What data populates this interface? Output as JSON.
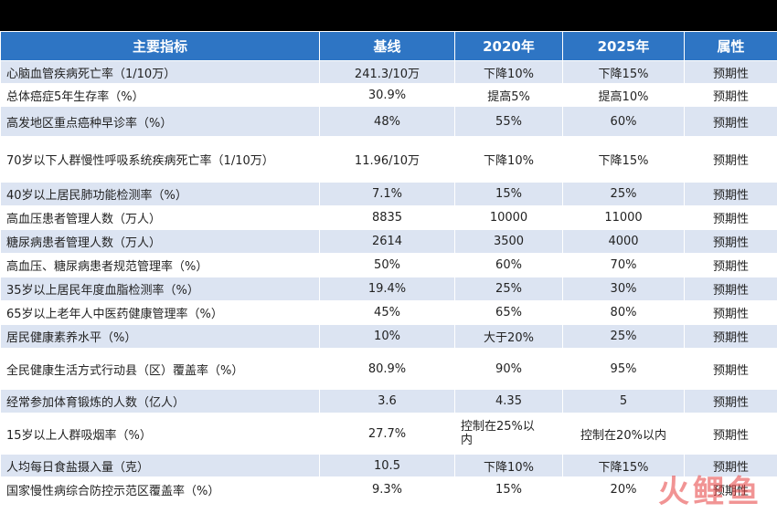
{
  "headers": [
    "主要指标",
    "基线",
    "2020年",
    "2025年",
    "属性"
  ],
  "rows": [
    [
      "心脑血管疾病死亡率（1/10万）",
      "241.3/10万",
      "下降10%",
      "下降15%",
      "预期性"
    ],
    [
      "总体癌症5年生存率（%）",
      "30.9%",
      "提高5%",
      "提高10%",
      "预期性"
    ],
    [
      "高发地区重点癌种早诊率（%）",
      "48%",
      "55%",
      "60%",
      "预期性"
    ],
    [
      "70岁以下人群慢性呼吸系统疾病死亡率（1/10万）",
      "11.96/10万",
      "下降10%",
      "下降15%",
      "预期性"
    ],
    [
      "40岁以上居民肺功能检测率（%）",
      "7.1%",
      "15%",
      "25%",
      "预期性"
    ],
    [
      "高血压患者管理人数（万人）",
      "8835",
      "10000",
      "11000",
      "预期性"
    ],
    [
      "糖尿病患者管理人数（万人）",
      "2614",
      "3500",
      "4000",
      "预期性"
    ],
    [
      "高血压、糖尿病患者规范管理率（%）",
      "50%",
      "60%",
      "70%",
      "预期性"
    ],
    [
      "35岁以上居民年度血脂检测率（%）",
      "19.4%",
      "25%",
      "30%",
      "预期性"
    ],
    [
      "65岁以上老年人中医药健康管理率（%）",
      "45%",
      "65%",
      "80%",
      "预期性"
    ],
    [
      "居民健康素养水平（%）",
      "10%",
      "大于20%",
      "25%",
      "预期性"
    ],
    [
      "全民健康生活方式行动县（区）覆盖率（%）",
      "80.9%",
      "90%",
      "95%",
      "预期性"
    ],
    [
      "经常参加体育锻炼的人数（亿人）",
      "3.6",
      "4.35",
      "5",
      "预期性"
    ],
    [
      "15岁以上人群吸烟率（%）",
      "27.7%",
      "控制在25%以内",
      "控制在20%以内",
      "预期性"
    ],
    [
      "人均每日食盐摄入量（克）",
      "10.5",
      "下降10%",
      "下降15%",
      "预期性"
    ],
    [
      "国家慢性病综合防控示范区覆盖率（%）",
      "9.3%",
      "15%",
      "20%",
      "预期性"
    ]
  ],
  "watermark": "火鲤鱼"
}
